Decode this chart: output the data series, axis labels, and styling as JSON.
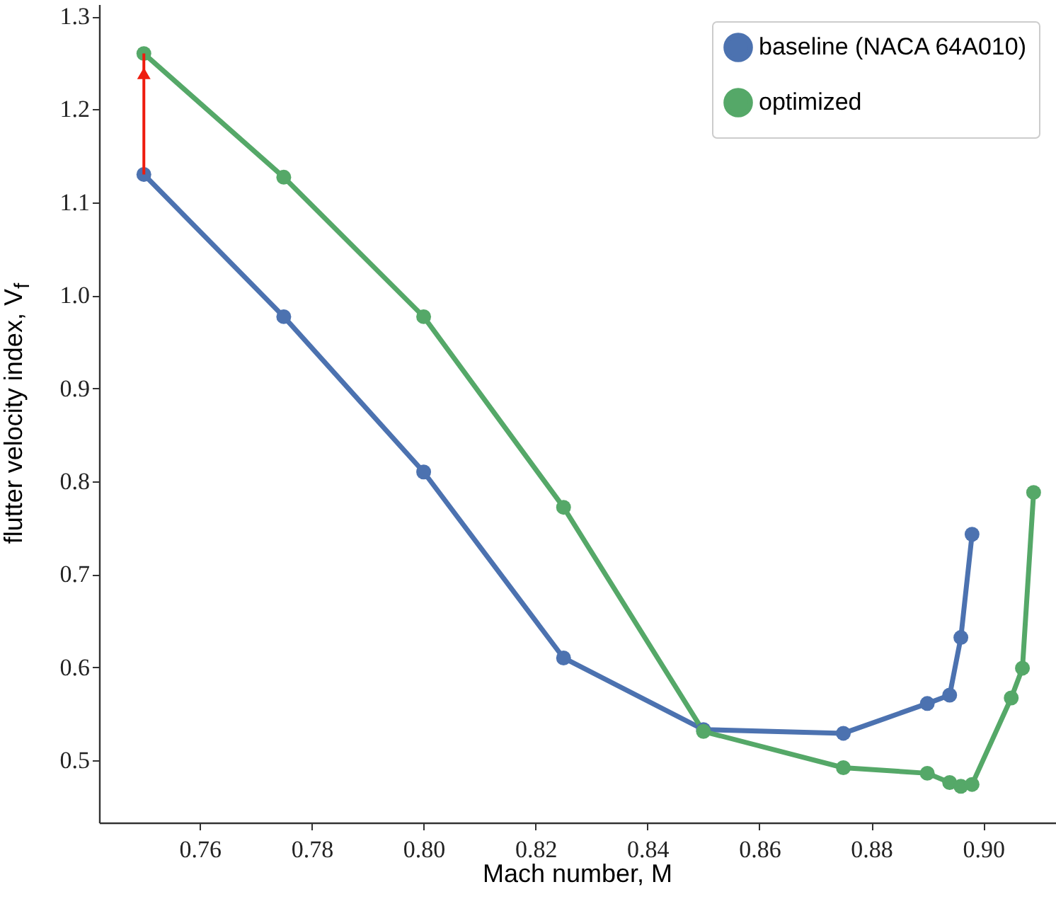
{
  "chart_data": {
    "type": "line",
    "xlabel": "Mach number, M",
    "ylabel": "flutter velocity index, V$_{f}$",
    "xlim": [
      0.742,
      0.913
    ],
    "ylim": [
      0.433,
      1.313
    ],
    "xticks": [
      0.76,
      0.78,
      {
        "value": 0.8,
        "label": "0.80"
      },
      0.82,
      0.84,
      0.86,
      0.88,
      {
        "value": 0.9,
        "label": "0.90"
      }
    ],
    "yticks": [
      0.5,
      0.6,
      0.7,
      0.8,
      0.9,
      {
        "value": 1.0,
        "label": "1.0"
      },
      1.1,
      1.2,
      1.3
    ],
    "grid": false,
    "legend": "top right",
    "marker": "circle",
    "line_style": "solid",
    "series": [
      {
        "name": "baseline (NACA 64A010)",
        "color": "#4c72b0",
        "x": [
          0.75,
          0.775,
          0.8,
          0.825,
          0.85,
          0.875,
          0.89,
          0.894,
          0.896,
          0.898
        ],
        "values": [
          1.13,
          0.977,
          0.81,
          0.61,
          0.533,
          0.529,
          0.561,
          0.57,
          0.632,
          0.743
        ]
      },
      {
        "name": "optimized",
        "color": "#55a868",
        "x": [
          0.75,
          0.775,
          0.8,
          0.825,
          0.85,
          0.875,
          0.89,
          0.894,
          0.896,
          0.898,
          0.905,
          0.907,
          0.909
        ],
        "values": [
          1.26,
          1.127,
          0.977,
          0.772,
          0.531,
          0.492,
          0.486,
          0.476,
          0.472,
          0.474,
          0.567,
          0.599,
          0.788
        ]
      }
    ]
  }
}
